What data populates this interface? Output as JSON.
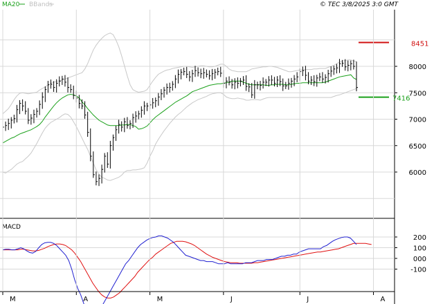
{
  "header": {
    "legend_ma": "MA20",
    "legend_bb": "BBands",
    "timestamp": "© TEC 3/8/2025 3:0 GMT"
  },
  "colors": {
    "ma20": "#1aa01a",
    "bbands": "#c8c8c8",
    "bars": "#000000",
    "macd": "#1f1fd0",
    "signal": "#e01010",
    "resistance": "#d01010",
    "support": "#1aa01a",
    "grid": "#d8d8d8",
    "axis": "#000000"
  },
  "chart_data": [
    {
      "type": "ohlc",
      "title": "",
      "ylim": [
        5500,
        8800
      ],
      "y_ticks": [
        6000,
        6500,
        7000,
        7500,
        8000
      ],
      "y_tick_labels": [
        "6000",
        "6500",
        "7000",
        "7500",
        "8000"
      ],
      "x_tick_labels": [
        "M",
        "A",
        "M",
        "J",
        "J",
        "A"
      ],
      "x_tick_index": [
        0,
        26,
        52,
        78,
        105,
        131
      ],
      "grid": true,
      "close": [
        6850,
        6880,
        6920,
        6980,
        7010,
        7180,
        7300,
        7250,
        7150,
        6980,
        7020,
        7090,
        7150,
        7280,
        7420,
        7560,
        7650,
        7660,
        7600,
        7680,
        7720,
        7760,
        7700,
        7600,
        7560,
        7450,
        7400,
        7300,
        7250,
        7080,
        6750,
        6300,
        5950,
        5820,
        5880,
        6050,
        6300,
        6150,
        6500,
        6650,
        6800,
        6900,
        6850,
        6950,
        6880,
        6920,
        7030,
        7060,
        7100,
        7170,
        7250,
        7250,
        7270,
        7310,
        7350,
        7420,
        7480,
        7550,
        7600,
        7600,
        7660,
        7760,
        7850,
        7890,
        7900,
        7850,
        7800,
        7860,
        7920,
        7880,
        7860,
        7880,
        7850,
        7820,
        7860,
        7890,
        7900,
        7870,
        7680,
        7720,
        7700,
        7650,
        7700,
        7680,
        7720,
        7740,
        7620,
        7610,
        7460,
        7650,
        7650,
        7640,
        7700,
        7700,
        7740,
        7740,
        7680,
        7740,
        7710,
        7630,
        7630,
        7680,
        7720,
        7760,
        7800,
        7900,
        7920,
        7830,
        7720,
        7740,
        7710,
        7780,
        7800,
        7760,
        7790,
        7860,
        7910,
        7950,
        7970,
        8050,
        8060,
        7990,
        8020,
        8050,
        8000,
        7600
      ],
      "resistance": {
        "value": 8451,
        "label": "8451"
      },
      "support": {
        "value": 7416,
        "label": "7416"
      },
      "series": [
        {
          "name": "MA20",
          "values": [
            6550,
            6580,
            6610,
            6640,
            6660,
            6690,
            6720,
            6740,
            6760,
            6780,
            6800,
            6830,
            6860,
            6900,
            6960,
            7040,
            7110,
            7180,
            7250,
            7310,
            7360,
            7400,
            7430,
            7460,
            7470,
            7460,
            7440,
            7400,
            7330,
            7270,
            7200,
            7140,
            7080,
            7030,
            6980,
            6950,
            6920,
            6890,
            6880,
            6880,
            6880,
            6880,
            6890,
            6890,
            6900,
            6900,
            6880,
            6860,
            6810,
            6820,
            6840,
            6870,
            6930,
            6990,
            7040,
            7080,
            7120,
            7160,
            7200,
            7240,
            7280,
            7320,
            7350,
            7380,
            7410,
            7440,
            7480,
            7520,
            7540,
            7560,
            7580,
            7600,
            7620,
            7640,
            7650,
            7660,
            7670,
            7670,
            7680,
            7690,
            7700,
            7720,
            7720,
            7720,
            7720,
            7700,
            7680,
            7660,
            7650,
            7650,
            7650,
            7650,
            7650,
            7640,
            7640,
            7650,
            7650,
            7660,
            7660,
            7660,
            7650,
            7650,
            7660,
            7670,
            7680,
            7680,
            7690,
            7690,
            7690,
            7690,
            7690,
            7690,
            7690,
            7690,
            7700,
            7720,
            7740,
            7760,
            7780,
            7800,
            7810,
            7820,
            7830,
            7840,
            7780,
            7750
          ]
        },
        {
          "name": "BBands upper",
          "values": [
            7100,
            7150,
            7200,
            7280,
            7370,
            7440,
            7490,
            7500,
            7490,
            7480,
            7490,
            7500,
            7510,
            7550,
            7580,
            7610,
            7650,
            7680,
            7700,
            7710,
            7730,
            7740,
            7760,
            7780,
            7800,
            7820,
            7840,
            7860,
            7880,
            7950,
            8050,
            8180,
            8310,
            8400,
            8470,
            8530,
            8580,
            8610,
            8630,
            8600,
            8500,
            8370,
            8200,
            8010,
            7820,
            7650,
            7560,
            7530,
            7510,
            7520,
            7530,
            7560,
            7640,
            7720,
            7790,
            7850,
            7880,
            7910,
            7930,
            7940,
            7960,
            7970,
            7980,
            7990,
            8000,
            8000,
            7990,
            7980,
            7990,
            8000,
            8010,
            8010,
            8000,
            7990,
            7990,
            8000,
            8020,
            8040,
            8040,
            8000,
            7950,
            7920,
            7910,
            7900,
            7900,
            7900,
            7900,
            7920,
            7950,
            7960,
            7970,
            7980,
            7990,
            7990,
            8000,
            8000,
            7990,
            7980,
            7960,
            7940,
            7920,
            7900,
            7900,
            7910,
            7920,
            7930,
            7930,
            7940,
            7940,
            7940,
            7950,
            7950,
            7960,
            7960,
            7960,
            7980,
            8000,
            8020,
            8050,
            8080,
            8100,
            8110,
            8120,
            8120,
            8100,
            8090
          ]
        },
        {
          "name": "BBands lower",
          "values": [
            6000,
            5980,
            6020,
            6050,
            6100,
            6150,
            6180,
            6200,
            6250,
            6300,
            6360,
            6450,
            6540,
            6640,
            6740,
            6830,
            6890,
            6940,
            6970,
            7000,
            7030,
            7070,
            7100,
            7090,
            7040,
            6950,
            6860,
            6750,
            6640,
            6530,
            6430,
            6300,
            6170,
            6040,
            5960,
            5900,
            5880,
            5850,
            5840,
            5860,
            5880,
            5900,
            5940,
            6000,
            6030,
            6030,
            6040,
            6040,
            6050,
            6060,
            6080,
            6170,
            6300,
            6400,
            6530,
            6620,
            6700,
            6780,
            6850,
            6920,
            6980,
            7040,
            7090,
            7130,
            7180,
            7230,
            7270,
            7310,
            7340,
            7370,
            7390,
            7410,
            7430,
            7460,
            7480,
            7490,
            7500,
            7500,
            7470,
            7420,
            7400,
            7390,
            7390,
            7400,
            7390,
            7380,
            7360,
            7360,
            7370,
            7370,
            7370,
            7360,
            7380,
            7400,
            7410,
            7410,
            7410,
            7410,
            7410,
            7410,
            7410,
            7410,
            7410,
            7410,
            7410,
            7410,
            7410,
            7410,
            7410,
            7410,
            7410,
            7410,
            7410,
            7410,
            7410,
            7410,
            7410,
            7430,
            7450,
            7460,
            7480,
            7500,
            7520,
            7540,
            7560,
            7580
          ]
        }
      ]
    },
    {
      "type": "line",
      "title": "MACD",
      "ylim": [
        -600,
        400
      ],
      "y_ticks": [
        200,
        100,
        0,
        -100
      ],
      "y_tick_labels": [
        "200",
        "100",
        "000",
        "-100"
      ],
      "x_tick_labels": [
        "M",
        "A",
        "M",
        "J",
        "J",
        "A"
      ],
      "grid": true,
      "series": [
        {
          "name": "MACD",
          "values": [
            80,
            85,
            85,
            80,
            80,
            90,
            100,
            90,
            70,
            55,
            50,
            65,
            100,
            130,
            145,
            150,
            150,
            140,
            120,
            90,
            60,
            30,
            -20,
            -100,
            -200,
            -280,
            -340,
            -420,
            -480,
            -530,
            -560,
            -540,
            -500,
            -450,
            -400,
            -350,
            -300,
            -250,
            -200,
            -150,
            -100,
            -50,
            -20,
            20,
            60,
            100,
            130,
            150,
            170,
            185,
            195,
            200,
            210,
            210,
            200,
            190,
            170,
            150,
            120,
            90,
            60,
            30,
            20,
            10,
            0,
            -10,
            -20,
            -20,
            -30,
            -30,
            -30,
            -40,
            -50,
            -50,
            -50,
            -40,
            -50,
            -50,
            -50,
            -50,
            -50,
            -40,
            -40,
            -40,
            -30,
            -20,
            -20,
            -20,
            -10,
            -10,
            -10,
            0,
            10,
            20,
            20,
            30,
            30,
            40,
            40,
            60,
            70,
            80,
            90,
            90,
            90,
            90,
            90,
            110,
            120,
            140,
            160,
            175,
            185,
            195,
            200,
            200,
            190,
            160,
            130
          ]
        },
        {
          "name": "Signal",
          "values": [
            80,
            80,
            80,
            80,
            80,
            80,
            85,
            85,
            80,
            75,
            70,
            70,
            75,
            85,
            95,
            110,
            120,
            130,
            135,
            135,
            130,
            120,
            100,
            80,
            50,
            10,
            -30,
            -80,
            -130,
            -180,
            -230,
            -270,
            -310,
            -340,
            -360,
            -370,
            -370,
            -360,
            -340,
            -320,
            -290,
            -260,
            -230,
            -200,
            -170,
            -130,
            -100,
            -70,
            -40,
            -10,
            10,
            40,
            60,
            80,
            100,
            120,
            140,
            150,
            160,
            160,
            160,
            155,
            145,
            135,
            120,
            100,
            80,
            60,
            40,
            25,
            10,
            0,
            -10,
            -20,
            -30,
            -35,
            -40,
            -40,
            -40,
            -45,
            -45,
            -45,
            -45,
            -45,
            -40,
            -40,
            -35,
            -30,
            -25,
            -20,
            -15,
            -10,
            -5,
            0,
            5,
            10,
            15,
            20,
            25,
            30,
            35,
            40,
            45,
            50,
            55,
            60,
            60,
            65,
            70,
            75,
            80,
            85,
            90,
            100,
            110,
            120,
            130,
            140,
            140,
            140,
            140,
            140,
            135,
            130
          ]
        }
      ]
    }
  ]
}
